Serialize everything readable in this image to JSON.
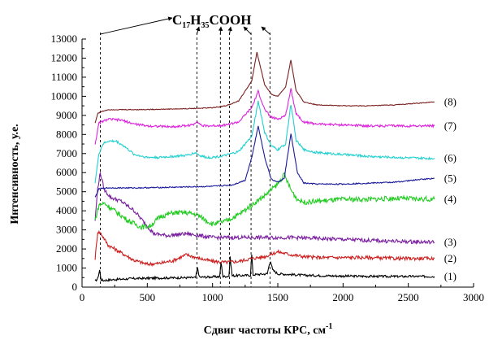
{
  "chart_data": {
    "type": "line",
    "title": "",
    "xlabel": "Сдвиг частоты КРС, см",
    "xlabel_sup": "-1",
    "ylabel": "Интенсивность, у.е.",
    "xlim": [
      0,
      3000
    ],
    "ylim": [
      0,
      13000
    ],
    "x_ticks": [
      0,
      500,
      1000,
      1500,
      2000,
      2500,
      3000
    ],
    "y_ticks": [
      0,
      1000,
      2000,
      3000,
      4000,
      5000,
      6000,
      7000,
      8000,
      9000,
      10000,
      11000,
      12000,
      13000
    ],
    "grid": false,
    "legend": "series labels at right end of each curve",
    "annotation": {
      "formula_parts": [
        {
          "text": "C",
          "sub": false
        },
        {
          "text": "17",
          "sub": true
        },
        {
          "text": "H",
          "sub": false
        },
        {
          "text": "35",
          "sub": true
        },
        {
          "text": "COOH",
          "sub": false
        }
      ],
      "marked_x": [
        140,
        880,
        1060,
        1130,
        1295,
        1440
      ]
    },
    "series": [
      {
        "name": "(1)",
        "color": "#000000",
        "noise": 60,
        "x": [
          100,
          120,
          135,
          145,
          160,
          250,
          400,
          600,
          870,
          885,
          900,
          1000,
          1055,
          1065,
          1080,
          1125,
          1135,
          1150,
          1290,
          1300,
          1310,
          1420,
          1435,
          1445,
          1460,
          1500,
          1700,
          2000,
          2300,
          2500,
          2700
        ],
        "y": [
          300,
          450,
          900,
          400,
          350,
          400,
          450,
          480,
          500,
          1000,
          520,
          540,
          550,
          1300,
          550,
          580,
          1550,
          600,
          620,
          1700,
          650,
          700,
          1200,
          1350,
          900,
          700,
          620,
          580,
          560,
          560,
          560
        ]
      },
      {
        "name": "(2)",
        "color": "#cc2020",
        "noise": 90,
        "x": [
          100,
          120,
          140,
          160,
          200,
          300,
          400,
          500,
          600,
          700,
          800,
          900,
          1000,
          1100,
          1200,
          1300,
          1400,
          1500,
          1600,
          1700,
          1800,
          2000,
          2200,
          2400,
          2700
        ],
        "y": [
          1500,
          2900,
          2850,
          2650,
          2200,
          1800,
          1400,
          1200,
          1250,
          1400,
          1700,
          1500,
          1350,
          1300,
          1350,
          1500,
          1600,
          1850,
          1700,
          1600,
          1550,
          1550,
          1550,
          1500,
          1500
        ]
      },
      {
        "name": "(3)",
        "color": "#7a1fa0",
        "noise": 100,
        "x": [
          100,
          120,
          140,
          170,
          220,
          300,
          400,
          500,
          550,
          650,
          800,
          900,
          1000,
          1200,
          1400,
          1600,
          1800,
          2000,
          2200,
          2400,
          2700
        ],
        "y": [
          3500,
          5200,
          6000,
          5100,
          4700,
          4500,
          4000,
          3200,
          2800,
          2700,
          2800,
          2700,
          2600,
          2600,
          2600,
          2600,
          2550,
          2500,
          2450,
          2400,
          2350
        ]
      },
      {
        "name": "(4)",
        "color": "#22cc22",
        "noise": 130,
        "x": [
          100,
          130,
          170,
          250,
          350,
          450,
          520,
          600,
          700,
          800,
          880,
          950,
          1000,
          1100,
          1200,
          1300,
          1400,
          1500,
          1550,
          1600,
          1650,
          1700,
          1800,
          2000,
          2200,
          2400,
          2700
        ],
        "y": [
          3500,
          4300,
          4400,
          4000,
          3500,
          3150,
          3200,
          3700,
          3900,
          3900,
          3800,
          3500,
          3300,
          3450,
          3800,
          4300,
          4800,
          5400,
          5900,
          5100,
          4600,
          4450,
          4500,
          4600,
          4600,
          4650,
          4600
        ]
      },
      {
        "name": "(5)",
        "color": "#1a1a9a",
        "noise": 30,
        "x": [
          100,
          130,
          200,
          400,
          600,
          800,
          1000,
          1150,
          1250,
          1300,
          1350,
          1400,
          1450,
          1500,
          1550,
          1600,
          1650,
          1700,
          1800,
          2000,
          2200,
          2400,
          2600,
          2700
        ],
        "y": [
          4700,
          5150,
          5200,
          5200,
          5220,
          5250,
          5280,
          5350,
          5600,
          6800,
          8450,
          6800,
          5650,
          5500,
          5700,
          8050,
          6000,
          5450,
          5400,
          5400,
          5450,
          5500,
          5650,
          5700
        ]
      },
      {
        "name": "(6)",
        "color": "#22d0d0",
        "noise": 60,
        "x": [
          100,
          130,
          160,
          200,
          260,
          320,
          400,
          500,
          600,
          700,
          800,
          870,
          900,
          950,
          1000,
          1100,
          1200,
          1300,
          1350,
          1400,
          1450,
          1500,
          1560,
          1600,
          1640,
          1700,
          1800,
          2000,
          2200,
          2400,
          2600,
          2700
        ],
        "y": [
          5500,
          7000,
          7500,
          7650,
          7650,
          7400,
          6950,
          6800,
          6800,
          6850,
          6900,
          7050,
          6900,
          6800,
          6800,
          6900,
          7100,
          7900,
          9750,
          8100,
          7400,
          7200,
          7500,
          9600,
          7700,
          7200,
          7050,
          6950,
          6850,
          6800,
          6750,
          6750
        ]
      },
      {
        "name": "(7)",
        "color": "#dd22dd",
        "noise": 60,
        "x": [
          100,
          130,
          200,
          300,
          400,
          500,
          700,
          850,
          880,
          920,
          1000,
          1100,
          1200,
          1300,
          1350,
          1400,
          1450,
          1500,
          1560,
          1600,
          1640,
          1700,
          1800,
          2000,
          2200,
          2400,
          2700
        ],
        "y": [
          7500,
          8600,
          8800,
          8750,
          8550,
          8450,
          8400,
          8500,
          8700,
          8450,
          8450,
          8500,
          8650,
          9400,
          10250,
          9300,
          8900,
          8800,
          9000,
          10400,
          9100,
          8650,
          8550,
          8500,
          8450,
          8450,
          8450
        ]
      },
      {
        "name": "(8)",
        "color": "#7a2020",
        "noise": 20,
        "x": [
          100,
          120,
          150,
          200,
          400,
          600,
          800,
          1000,
          1100,
          1200,
          1300,
          1340,
          1400,
          1450,
          1500,
          1560,
          1600,
          1640,
          1700,
          1800,
          2000,
          2200,
          2400,
          2600,
          2700
        ],
        "y": [
          8600,
          9100,
          9200,
          9300,
          9300,
          9320,
          9350,
          9400,
          9500,
          9750,
          10800,
          12300,
          10600,
          10100,
          10000,
          10500,
          11900,
          10300,
          9700,
          9550,
          9500,
          9500,
          9550,
          9650,
          9700
        ]
      }
    ]
  }
}
